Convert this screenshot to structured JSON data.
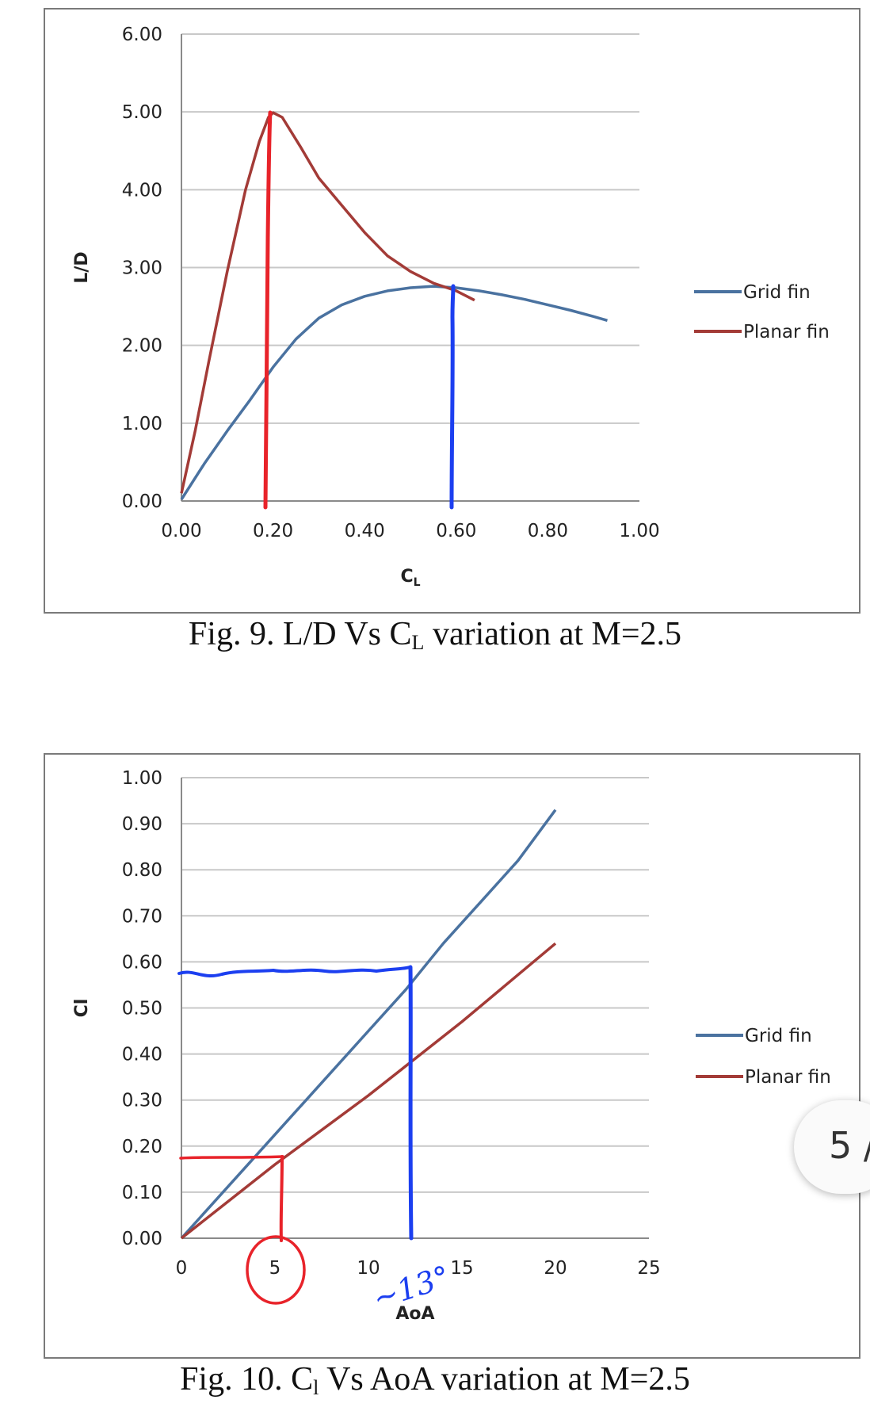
{
  "figures": [
    {
      "caption": {
        "prefix": "Fig. 9. L/D Vs C",
        "sub": "L",
        "suffix": " variation at M=2.5"
      }
    },
    {
      "caption": {
        "prefix": "Fig. 10. C",
        "sub": "l",
        "suffix": " Vs AoA variation at M=2.5"
      }
    }
  ],
  "page_indicator": "5 /",
  "handwritten_note": "~13°",
  "colors": {
    "grid_fin": "#4a72a0",
    "planar_fin": "#a33b37",
    "gridline": "#c8c8c8",
    "annotation_red": "#e8232a",
    "annotation_blue": "#1c3ff0"
  },
  "chart_data": [
    {
      "type": "line",
      "xlabel": "C",
      "xlabel_sub": "L",
      "ylabel": "L/D",
      "xlim": [
        0,
        1.0
      ],
      "ylim": [
        0,
        6.0
      ],
      "xticks": [
        "0.00",
        "0.20",
        "0.40",
        "0.60",
        "0.80",
        "1.00"
      ],
      "yticks": [
        "0.00",
        "1.00",
        "2.00",
        "3.00",
        "4.00",
        "5.00",
        "6.00"
      ],
      "grid": true,
      "legend_position": "right",
      "series": [
        {
          "name": "Grid fin",
          "color": "#4a72a0",
          "points": [
            [
              0.0,
              0.02
            ],
            [
              0.05,
              0.48
            ],
            [
              0.1,
              0.9
            ],
            [
              0.15,
              1.3
            ],
            [
              0.2,
              1.72
            ],
            [
              0.25,
              2.08
            ],
            [
              0.3,
              2.35
            ],
            [
              0.35,
              2.52
            ],
            [
              0.4,
              2.63
            ],
            [
              0.45,
              2.7
            ],
            [
              0.5,
              2.74
            ],
            [
              0.55,
              2.76
            ],
            [
              0.6,
              2.74
            ],
            [
              0.65,
              2.7
            ],
            [
              0.7,
              2.65
            ],
            [
              0.75,
              2.59
            ],
            [
              0.8,
              2.52
            ],
            [
              0.85,
              2.45
            ],
            [
              0.9,
              2.37
            ],
            [
              0.93,
              2.32
            ]
          ]
        },
        {
          "name": "Planar fin",
          "color": "#a33b37",
          "points": [
            [
              0.0,
              0.1
            ],
            [
              0.03,
              0.9
            ],
            [
              0.06,
              1.8
            ],
            [
              0.1,
              2.95
            ],
            [
              0.14,
              4.0
            ],
            [
              0.17,
              4.62
            ],
            [
              0.19,
              4.93
            ],
            [
              0.2,
              4.99
            ],
            [
              0.22,
              4.93
            ],
            [
              0.26,
              4.55
            ],
            [
              0.3,
              4.15
            ],
            [
              0.35,
              3.8
            ],
            [
              0.4,
              3.45
            ],
            [
              0.45,
              3.15
            ],
            [
              0.5,
              2.95
            ],
            [
              0.55,
              2.8
            ],
            [
              0.6,
              2.7
            ],
            [
              0.64,
              2.58
            ]
          ]
        }
      ],
      "annotations": [
        {
          "color": "red",
          "kind": "hand-drawn vertical line",
          "x": 0.19,
          "y_top": 4.99,
          "y_bottom": 0.0
        },
        {
          "color": "blue",
          "kind": "hand-drawn vertical line",
          "x": 0.59,
          "y_top": 2.76,
          "y_bottom": 0.0
        }
      ]
    },
    {
      "type": "line",
      "xlabel": "AoA",
      "ylabel": "Cl",
      "xlim": [
        0,
        25
      ],
      "ylim": [
        0,
        1.0
      ],
      "xticks": [
        "0",
        "5",
        "10",
        "15",
        "20",
        "25"
      ],
      "yticks": [
        "0.00",
        "0.10",
        "0.20",
        "0.30",
        "0.40",
        "0.50",
        "0.60",
        "0.70",
        "0.80",
        "0.90",
        "1.00"
      ],
      "grid": true,
      "legend_position": "right",
      "series": [
        {
          "name": "Grid fin",
          "color": "#4a72a0",
          "points": [
            [
              0,
              0.0
            ],
            [
              2,
              0.09
            ],
            [
              4,
              0.18
            ],
            [
              6,
              0.27
            ],
            [
              8,
              0.36
            ],
            [
              10,
              0.45
            ],
            [
              12,
              0.54
            ],
            [
              14,
              0.64
            ],
            [
              16,
              0.73
            ],
            [
              18,
              0.82
            ],
            [
              20,
              0.93
            ]
          ]
        },
        {
          "name": "Planar fin",
          "color": "#a33b37",
          "points": [
            [
              0,
              0.0
            ],
            [
              5,
              0.16
            ],
            [
              10,
              0.31
            ],
            [
              15,
              0.47
            ],
            [
              20,
              0.64
            ]
          ]
        }
      ],
      "annotations": [
        {
          "color": "blue",
          "kind": "hand-drawn guide",
          "from": [
            0,
            0.58
          ],
          "corner": [
            12.3,
            0.59
          ],
          "to_x_axis": 12.3
        },
        {
          "color": "red",
          "kind": "hand-drawn guide",
          "from": [
            0,
            0.17
          ],
          "corner": [
            5.3,
            0.175
          ],
          "to_x_axis": 5.3
        },
        {
          "color": "red",
          "kind": "hand-drawn circle",
          "around_tick": "5"
        },
        {
          "color": "blue",
          "kind": "handwritten text",
          "near_tick": "10"
        }
      ]
    }
  ]
}
